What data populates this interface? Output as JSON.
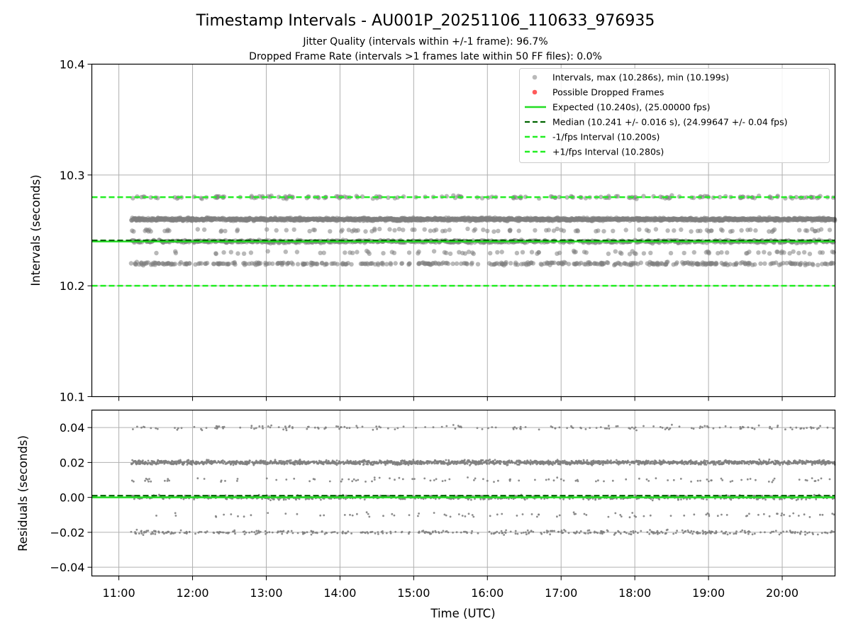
{
  "title": "Timestamp Intervals - AU001P_20251106_110633_976935",
  "subtitle_jitter": "Jitter Quality (intervals within +/-1 frame): 96.7%",
  "subtitle_dropped": "Dropped Frame Rate (intervals >1 frames late within 50 FF files): 0.0%",
  "colors": {
    "points": "#808080",
    "dropped": "#ff5a5a",
    "expected": "#22dd22",
    "median": "#006400",
    "fps_interval": "#22ee22",
    "grid": "#b0b0b0"
  },
  "chart_data": [
    {
      "type": "scatter",
      "panel": "intervals",
      "ylabel": "Intervals (seconds)",
      "ylim": [
        10.1,
        10.4
      ],
      "yticks": [
        "10.1",
        "10.2",
        "10.3",
        "10.4"
      ],
      "xlim": [
        "10:38",
        "20:43"
      ],
      "grid": true,
      "legend_position": "top-right",
      "legend": [
        {
          "label": "Intervals, max (10.286s), min (10.199s)",
          "style": "marker-gray"
        },
        {
          "label": "Possible Dropped Frames",
          "style": "marker-red"
        },
        {
          "label": "Expected (10.240s), (25.00000 fps)",
          "style": "line-solid-green"
        },
        {
          "label": "Median (10.241 +/- 0.016 s), (24.99647 +/- 0.04 fps)",
          "style": "line-dashed-darkgreen"
        },
        {
          "label": "-1/fps Interval (10.200s)",
          "style": "line-dashed-green"
        },
        {
          "label": "+1/fps Interval (10.280s)",
          "style": "line-dashed-green"
        }
      ],
      "expected": 10.24,
      "median": 10.241,
      "minus_fps_interval": 10.2,
      "plus_fps_interval": 10.28,
      "max": 10.286,
      "min": 10.199,
      "series": [
        {
          "points": {
            "x_start": "11:10",
            "x_end": "20:43",
            "count": 3350,
            "levels": [
              {
                "y": 10.26,
                "share": 0.55
              },
              {
                "y": 10.24,
                "share": 0.22
              },
              {
                "y": 10.22,
                "share": 0.12
              },
              {
                "y": 10.28,
                "share": 0.05
              },
              {
                "y": 10.25,
                "share": 0.03
              },
              {
                "y": 10.23,
                "share": 0.03
              }
            ]
          }
        }
      ]
    },
    {
      "type": "scatter",
      "panel": "residuals",
      "xlabel": "Time (UTC)",
      "ylabel": "Residuals (seconds)",
      "ylim": [
        -0.045,
        0.05
      ],
      "yticks": [
        "−0.04",
        "−0.02",
        "0.00",
        "0.02",
        "0.04"
      ],
      "ytick_values": [
        -0.04,
        -0.02,
        0.0,
        0.02,
        0.04
      ],
      "xticks": [
        "11:00",
        "12:00",
        "13:00",
        "14:00",
        "15:00",
        "16:00",
        "17:00",
        "18:00",
        "19:00",
        "20:00"
      ],
      "xlim": [
        "10:38",
        "20:43"
      ],
      "grid": true,
      "expected": 0.0,
      "median": 0.001,
      "series": [
        {
          "points": {
            "x_start": "11:10",
            "x_end": "20:43",
            "count": 3350,
            "levels": [
              {
                "y": 0.02,
                "share": 0.55
              },
              {
                "y": 0.0,
                "share": 0.22
              },
              {
                "y": -0.02,
                "share": 0.12
              },
              {
                "y": 0.04,
                "share": 0.05
              },
              {
                "y": 0.01,
                "share": 0.03
              },
              {
                "y": -0.01,
                "share": 0.03
              }
            ]
          }
        }
      ]
    }
  ]
}
